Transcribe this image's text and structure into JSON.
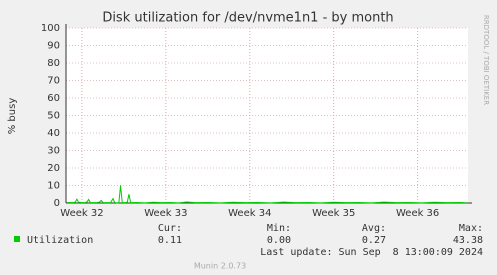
{
  "chart_data": {
    "type": "line",
    "title": "Disk utilization for /dev/nvme1n1 - by month",
    "y_label": "% busy",
    "side_text": "RRDTOOL / TOBI OETIKER",
    "x": [
      31.82,
      31.86,
      31.9,
      31.92,
      31.94,
      31.96,
      32.0,
      32.04,
      32.06,
      32.08,
      32.1,
      32.14,
      32.18,
      32.21,
      32.23,
      32.25,
      32.3,
      32.34,
      32.37,
      32.39,
      32.42,
      32.44,
      32.46,
      32.48,
      32.52,
      32.54,
      32.56,
      32.58,
      32.65,
      32.75,
      32.85,
      32.95,
      33.05,
      33.15,
      33.25,
      33.35,
      33.5,
      33.65,
      33.8,
      33.95,
      34.1,
      34.25,
      34.4,
      34.55,
      34.7,
      34.85,
      35.0,
      35.15,
      35.3,
      35.45,
      35.6,
      35.75,
      35.9,
      36.05,
      36.2,
      36.35,
      36.5,
      36.58
    ],
    "series": [
      {
        "name": "Utilization",
        "color": "#00cc00",
        "values": [
          0.2,
          0.3,
          0.2,
          0.5,
          2.2,
          0.4,
          0.2,
          0.3,
          0.6,
          2.0,
          0.3,
          0.2,
          0.3,
          0.5,
          1.5,
          0.3,
          0.2,
          0.2,
          2.5,
          0.3,
          0.1,
          0.2,
          10,
          0.3,
          0.2,
          0.5,
          5,
          0.2,
          0.3,
          0.1,
          0.4,
          0.2,
          0.3,
          0.1,
          0.6,
          0.2,
          0.3,
          0.1,
          0.4,
          0.2,
          0.3,
          0.1,
          0.5,
          0.2,
          0.3,
          0.1,
          0.4,
          0.2,
          0.3,
          0.1,
          0.5,
          0.2,
          0.3,
          0.1,
          0.4,
          0.2,
          0.3,
          0.11
        ]
      }
    ],
    "xlim": [
      31.81,
      36.6
    ],
    "xticks": [
      {
        "value": 32,
        "label": "Week 32"
      },
      {
        "value": 33,
        "label": "Week 33"
      },
      {
        "value": 34,
        "label": "Week 34"
      },
      {
        "value": 35,
        "label": "Week 35"
      },
      {
        "value": 36,
        "label": "Week 36"
      }
    ],
    "ylim": [
      0,
      100
    ],
    "yticks": [
      0,
      10,
      20,
      30,
      40,
      50,
      60,
      70,
      80,
      90,
      100
    ],
    "grid": true,
    "stats": {
      "headers": [
        "Cur:",
        "Min:",
        "Avg:",
        "Max:"
      ],
      "values": [
        "0.11",
        "0.00",
        "0.27",
        "43.38"
      ]
    },
    "last_update": "Last update: Sun Sep  8 13:00:09 2024",
    "footer": "Munin 2.0.73"
  }
}
